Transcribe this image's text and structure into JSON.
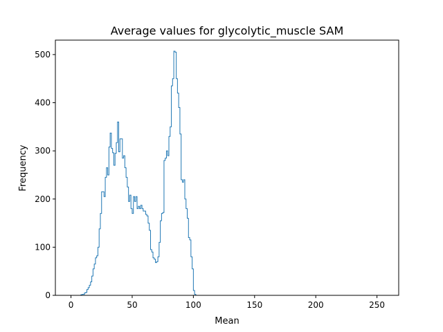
{
  "chart_data": {
    "type": "histogram",
    "title": "Average values for glycolytic_muscle SAM",
    "xlabel": "Mean",
    "ylabel": "Frequency",
    "xlim": [
      -12.75,
      267.75
    ],
    "ylim": [
      0,
      530
    ],
    "xticks": [
      0,
      50,
      100,
      150,
      200,
      250
    ],
    "yticks": [
      0,
      100,
      200,
      300,
      400,
      500
    ],
    "bins": {
      "start": 0,
      "width": 1,
      "count": 256
    },
    "step_color": "#1f77b4",
    "values": [
      0,
      0,
      0,
      0,
      0,
      0,
      0,
      0,
      1,
      2,
      2,
      5,
      6,
      12,
      16,
      21,
      28,
      40,
      55,
      65,
      78,
      82,
      100,
      138,
      170,
      215,
      215,
      205,
      245,
      265,
      250,
      308,
      337,
      305,
      296,
      270,
      295,
      317,
      360,
      298,
      325,
      325,
      285,
      290,
      265,
      245,
      225,
      195,
      208,
      180,
      170,
      205,
      195,
      205,
      180,
      185,
      180,
      187,
      180,
      175,
      175,
      168,
      165,
      150,
      135,
      95,
      90,
      78,
      75,
      68,
      70,
      80,
      110,
      155,
      170,
      172,
      280,
      285,
      300,
      290,
      330,
      350,
      435,
      450,
      507,
      505,
      450,
      420,
      390,
      335,
      240,
      235,
      240,
      200,
      180,
      160,
      120,
      115,
      80,
      55,
      10,
      2,
      0,
      0,
      0,
      0,
      0,
      0,
      0,
      0,
      0,
      0,
      0,
      0,
      0,
      0,
      0,
      0,
      0,
      0,
      0,
      0,
      0,
      0,
      0,
      0,
      0,
      0,
      0,
      0,
      0,
      0,
      0,
      0,
      0,
      0,
      0,
      0,
      0,
      0,
      0,
      0,
      0,
      0,
      0,
      0,
      0,
      0,
      0,
      0,
      0,
      0,
      0,
      0,
      0,
      0,
      0,
      0,
      0,
      0,
      0,
      0,
      0,
      0,
      0,
      0,
      0,
      0,
      0,
      0,
      0,
      0,
      0,
      0,
      0,
      0,
      0,
      0,
      0,
      0,
      0,
      0,
      0,
      0,
      0,
      0,
      0,
      0,
      0,
      0,
      0,
      0,
      0,
      0,
      0,
      0,
      0,
      0,
      0,
      0,
      0,
      0,
      0,
      0,
      0,
      0,
      0,
      0,
      0,
      0,
      0,
      0,
      0,
      0,
      0,
      0,
      0,
      0,
      0,
      0,
      0,
      0,
      0,
      0,
      0,
      0,
      0,
      0,
      0,
      0,
      0,
      0,
      0,
      0,
      0,
      0,
      0,
      0,
      0,
      0,
      0,
      0,
      0,
      0,
      0,
      0,
      0,
      0,
      0,
      0,
      0,
      0,
      0,
      0,
      0,
      0,
      0,
      0,
      0,
      0,
      0,
      0,
      0,
      0,
      0,
      0,
      0
    ]
  }
}
